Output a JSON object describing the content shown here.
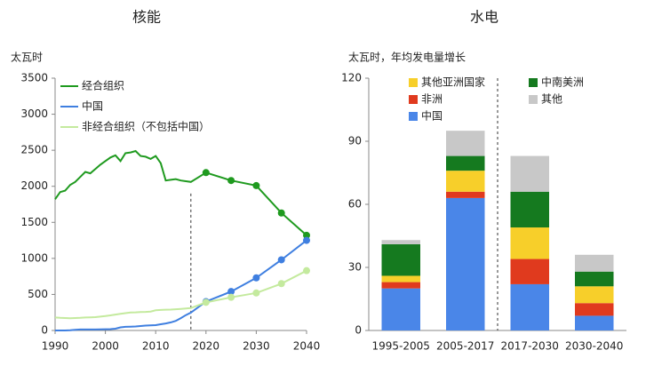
{
  "chart_data": [
    {
      "type": "line",
      "title": "核能",
      "y_label": "太瓦时",
      "x": [
        1990,
        1991,
        1992,
        1993,
        1994,
        1995,
        1996,
        1997,
        1998,
        1999,
        2000,
        2001,
        2002,
        2003,
        2004,
        2005,
        2006,
        2007,
        2008,
        2009,
        2010,
        2011,
        2012,
        2013,
        2014,
        2015,
        2016,
        2017,
        2020,
        2025,
        2030,
        2035,
        2040
      ],
      "series": [
        {
          "name": "经合组织",
          "color": "#1f9a1f",
          "values": [
            1820,
            1920,
            1940,
            2020,
            2060,
            2130,
            2200,
            2180,
            2240,
            2300,
            2350,
            2400,
            2430,
            2350,
            2460,
            2470,
            2490,
            2420,
            2410,
            2380,
            2420,
            2320,
            2080,
            2090,
            2100,
            2080,
            2070,
            2060,
            2190,
            2080,
            2010,
            1630,
            1320
          ]
        },
        {
          "name": "中国",
          "color": "#3f7fe0",
          "values": [
            0,
            0,
            0,
            2,
            10,
            13,
            14,
            14,
            14,
            15,
            17,
            18,
            25,
            43,
            50,
            53,
            55,
            62,
            68,
            70,
            74,
            86,
            97,
            112,
            133,
            171,
            213,
            248,
            400,
            540,
            730,
            980,
            1250
          ]
        },
        {
          "name": "非经合组织（不包括中国）",
          "color": "#c4ea9e",
          "values": [
            180,
            175,
            172,
            170,
            172,
            175,
            180,
            182,
            185,
            192,
            200,
            210,
            220,
            230,
            240,
            250,
            252,
            255,
            258,
            262,
            280,
            285,
            288,
            290,
            295,
            300,
            305,
            310,
            390,
            460,
            520,
            650,
            830
          ]
        }
      ],
      "divider_x": 2017,
      "xlim": [
        1990,
        2040
      ],
      "xticks": [
        1990,
        2000,
        2010,
        2020,
        2030,
        2040
      ],
      "ylim": [
        0,
        3500
      ],
      "yticks": [
        0,
        500,
        1000,
        1500,
        2000,
        2500,
        3000,
        3500
      ]
    },
    {
      "type": "stacked_bar",
      "title": "水电",
      "y_label": "太瓦时，年均发电量增长",
      "categories": [
        "1995-2005",
        "2005-2017",
        "2017-2030",
        "2030-2040"
      ],
      "series": [
        {
          "name": "中国",
          "color": "#4a86e8",
          "values": [
            20,
            63,
            22,
            7
          ]
        },
        {
          "name": "非洲",
          "color": "#e03a1e",
          "values": [
            3,
            3,
            12,
            6
          ]
        },
        {
          "name": "其他亚洲国家",
          "color": "#f7cf2a",
          "values": [
            3,
            10,
            15,
            8
          ]
        },
        {
          "name": "中南美洲",
          "color": "#157a1f",
          "values": [
            15,
            7,
            17,
            7
          ]
        },
        {
          "name": "其他",
          "color": "#c8c8c8",
          "values": [
            2,
            12,
            17,
            8
          ]
        }
      ],
      "ylim": [
        0,
        120
      ],
      "yticks": [
        0,
        30,
        60,
        90,
        120
      ]
    }
  ]
}
